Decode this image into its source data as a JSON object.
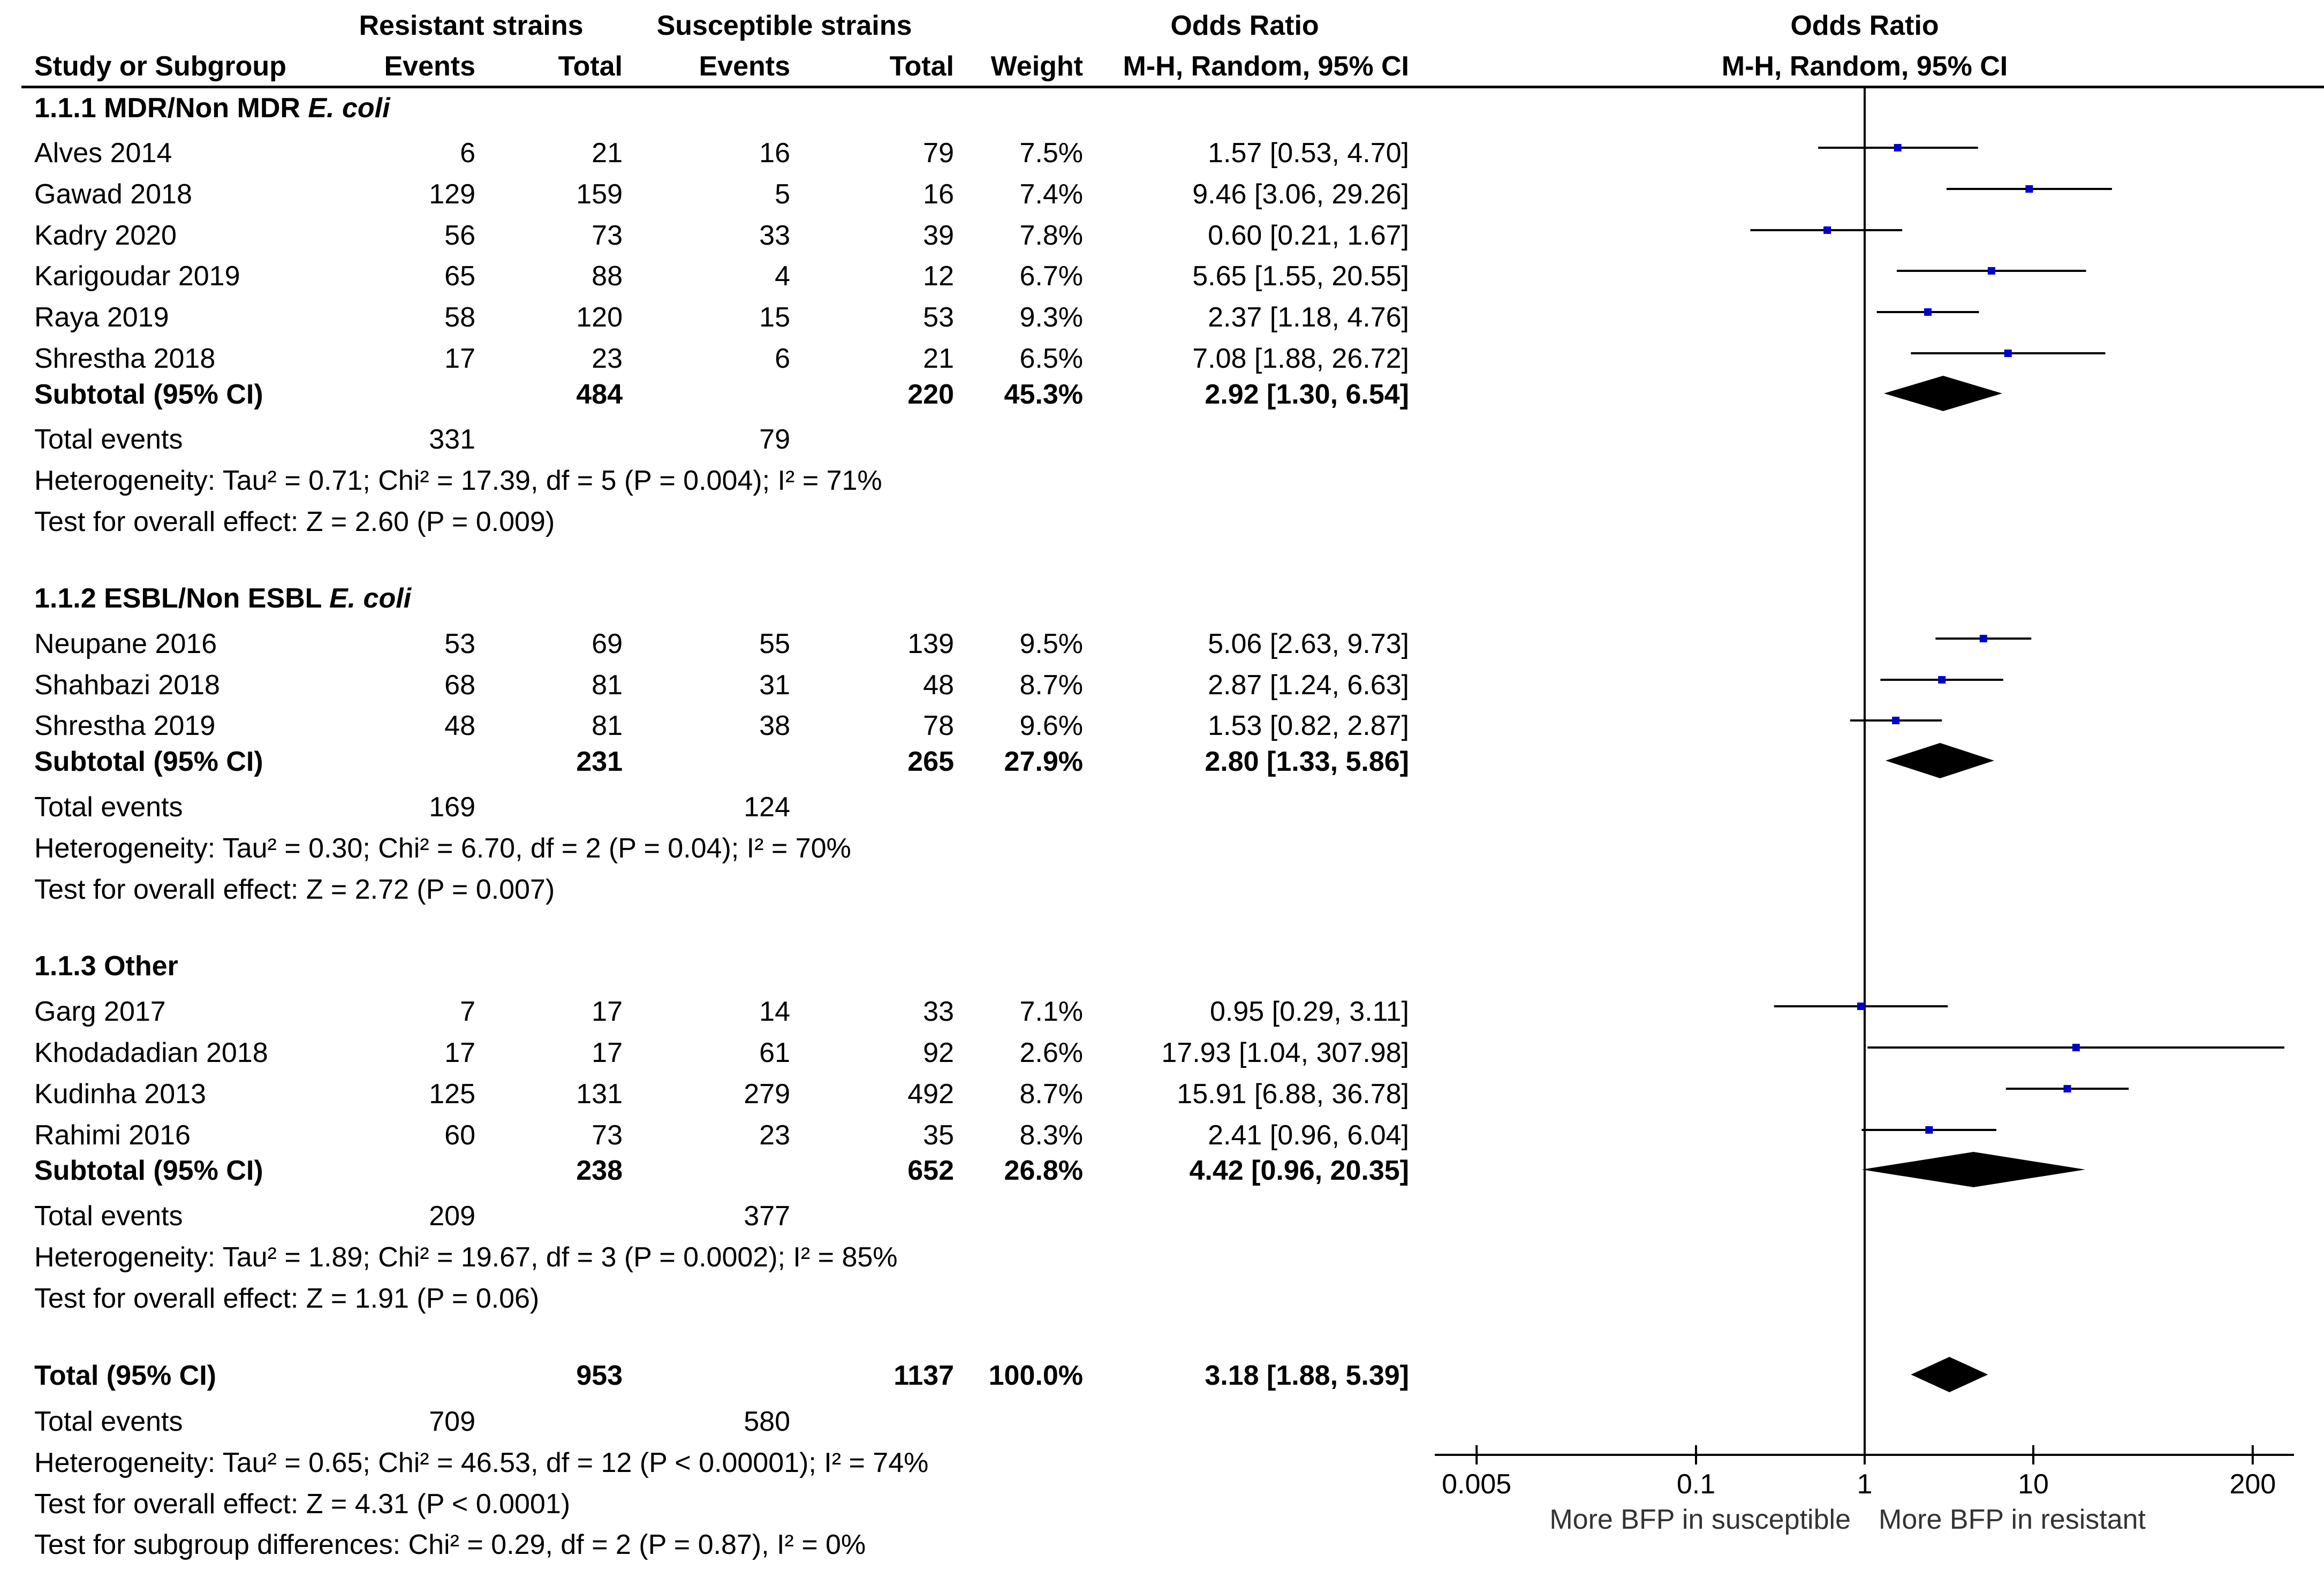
{
  "header": {
    "resistant": "Resistant strains",
    "susceptible": "Susceptible strains",
    "or_title": "Odds Ratio",
    "or_method": "M-H, Random, 95% CI",
    "plot_title": "Odds Ratio",
    "plot_method": "M-H, Random, 95% CI",
    "study": "Study or Subgroup",
    "events": "Events",
    "total": "Total",
    "weight": "Weight"
  },
  "groups": [
    {
      "title": "1.1.1 MDR/Non MDR ",
      "title_italic": "E. coli",
      "studies": [
        {
          "name": "Alves 2014",
          "r_events": "6",
          "r_total": "21",
          "s_events": "16",
          "s_total": "79",
          "weight": "7.5%",
          "ci": "1.57 [0.53, 4.70]"
        },
        {
          "name": "Gawad 2018",
          "r_events": "129",
          "r_total": "159",
          "s_events": "5",
          "s_total": "16",
          "weight": "7.4%",
          "ci": "9.46 [3.06, 29.26]"
        },
        {
          "name": "Kadry 2020",
          "r_events": "56",
          "r_total": "73",
          "s_events": "33",
          "s_total": "39",
          "weight": "7.8%",
          "ci": "0.60 [0.21, 1.67]"
        },
        {
          "name": "Karigoudar 2019",
          "r_events": "65",
          "r_total": "88",
          "s_events": "4",
          "s_total": "12",
          "weight": "6.7%",
          "ci": "5.65 [1.55, 20.55]"
        },
        {
          "name": "Raya 2019",
          "r_events": "58",
          "r_total": "120",
          "s_events": "15",
          "s_total": "53",
          "weight": "9.3%",
          "ci": "2.37 [1.18, 4.76]"
        },
        {
          "name": "Shrestha 2018",
          "r_events": "17",
          "r_total": "23",
          "s_events": "6",
          "s_total": "21",
          "weight": "6.5%",
          "ci": "7.08 [1.88, 26.72]"
        }
      ],
      "subtotal": {
        "label": "Subtotal (95% CI)",
        "r_total": "484",
        "s_total": "220",
        "weight": "45.3%",
        "ci": "2.92 [1.30, 6.54]"
      },
      "events": {
        "label": "Total events",
        "r": "331",
        "s": "79"
      },
      "heterogeneity": "Heterogeneity: Tau² = 0.71; Chi² = 17.39, df = 5 (P = 0.004); I² = 71%",
      "overall": "Test for overall effect: Z = 2.60 (P = 0.009)"
    },
    {
      "title": "1.1.2 ESBL/Non ESBL ",
      "title_italic": "E. coli",
      "studies": [
        {
          "name": "Neupane 2016",
          "r_events": "53",
          "r_total": "69",
          "s_events": "55",
          "s_total": "139",
          "weight": "9.5%",
          "ci": "5.06 [2.63, 9.73]"
        },
        {
          "name": "Shahbazi 2018",
          "r_events": "68",
          "r_total": "81",
          "s_events": "31",
          "s_total": "48",
          "weight": "8.7%",
          "ci": "2.87 [1.24, 6.63]"
        },
        {
          "name": "Shrestha 2019",
          "r_events": "48",
          "r_total": "81",
          "s_events": "38",
          "s_total": "78",
          "weight": "9.6%",
          "ci": "1.53 [0.82, 2.87]"
        }
      ],
      "subtotal": {
        "label": "Subtotal (95% CI)",
        "r_total": "231",
        "s_total": "265",
        "weight": "27.9%",
        "ci": "2.80 [1.33, 5.86]"
      },
      "events": {
        "label": "Total events",
        "r": "169",
        "s": "124"
      },
      "heterogeneity": "Heterogeneity: Tau² = 0.30; Chi² = 6.70, df = 2 (P = 0.04); I² = 70%",
      "overall": "Test for overall effect: Z = 2.72 (P = 0.007)"
    },
    {
      "title": "1.1.3 Other",
      "title_italic": "",
      "studies": [
        {
          "name": "Garg 2017",
          "r_events": "7",
          "r_total": "17",
          "s_events": "14",
          "s_total": "33",
          "weight": "7.1%",
          "ci": "0.95 [0.29, 3.11]"
        },
        {
          "name": "Khodadadian 2018",
          "r_events": "17",
          "r_total": "17",
          "s_events": "61",
          "s_total": "92",
          "weight": "2.6%",
          "ci": "17.93 [1.04, 307.98]"
        },
        {
          "name": "Kudinha 2013",
          "r_events": "125",
          "r_total": "131",
          "s_events": "279",
          "s_total": "492",
          "weight": "8.7%",
          "ci": "15.91 [6.88, 36.78]"
        },
        {
          "name": "Rahimi 2016",
          "r_events": "60",
          "r_total": "73",
          "s_events": "23",
          "s_total": "35",
          "weight": "8.3%",
          "ci": "2.41 [0.96, 6.04]"
        }
      ],
      "subtotal": {
        "label": "Subtotal (95% CI)",
        "r_total": "238",
        "s_total": "652",
        "weight": "26.8%",
        "ci": "4.42 [0.96, 20.35]"
      },
      "events": {
        "label": "Total events",
        "r": "209",
        "s": "377"
      },
      "heterogeneity": "Heterogeneity: Tau² = 1.89; Chi² = 19.67, df = 3 (P = 0.0002); I² = 85%",
      "overall": "Test for overall effect: Z = 1.91 (P = 0.06)"
    }
  ],
  "total": {
    "label": "Total (95% CI)",
    "r_total": "953",
    "s_total": "1137",
    "weight": "100.0%",
    "ci": "3.18 [1.88, 5.39]",
    "events_label": "Total events",
    "r_events": "709",
    "s_events": "580",
    "heterogeneity": "Heterogeneity: Tau² = 0.65; Chi² = 46.53, df = 12 (P < 0.00001); I² = 74%",
    "overall": "Test for overall effect: Z = 4.31 (P < 0.0001)",
    "subgroup": "Test for subgroup differences: Chi² = 0.29, df = 2 (P = 0.87), I² = 0%"
  },
  "axis_footer": {
    "left": "More BFP in susceptible",
    "right": "More BFP in resistant"
  },
  "colors": {
    "marker": "#0000cc",
    "text": "#000000"
  },
  "chart_data": {
    "type": "forest",
    "title": "Odds Ratio",
    "subtitle": "M-H, Random, 95% CI",
    "xscale": "log",
    "xlim": [
      0.005,
      200
    ],
    "xticks": [
      0.005,
      0.1,
      1,
      10,
      200
    ],
    "xtick_labels": [
      "0.005",
      "0.1",
      "1",
      "10",
      "200"
    ],
    "reference_line": 1,
    "studies": [
      {
        "name": "Alves 2014",
        "or": 1.57,
        "lo": 0.53,
        "hi": 4.7
      },
      {
        "name": "Gawad 2018",
        "or": 9.46,
        "lo": 3.06,
        "hi": 29.26
      },
      {
        "name": "Kadry 2020",
        "or": 0.6,
        "lo": 0.21,
        "hi": 1.67
      },
      {
        "name": "Karigoudar 2019",
        "or": 5.65,
        "lo": 1.55,
        "hi": 20.55
      },
      {
        "name": "Raya 2019",
        "or": 2.37,
        "lo": 1.18,
        "hi": 4.76
      },
      {
        "name": "Shrestha 2018",
        "or": 7.08,
        "lo": 1.88,
        "hi": 26.72
      },
      {
        "name": "Neupane 2016",
        "or": 5.06,
        "lo": 2.63,
        "hi": 9.73
      },
      {
        "name": "Shahbazi 2018",
        "or": 2.87,
        "lo": 1.24,
        "hi": 6.63
      },
      {
        "name": "Shrestha 2019",
        "or": 1.53,
        "lo": 0.82,
        "hi": 2.87
      },
      {
        "name": "Garg 2017",
        "or": 0.95,
        "lo": 0.29,
        "hi": 3.11
      },
      {
        "name": "Khodadadian 2018",
        "or": 17.93,
        "lo": 1.04,
        "hi": 307.98
      },
      {
        "name": "Kudinha 2013",
        "or": 15.91,
        "lo": 6.88,
        "hi": 36.78
      },
      {
        "name": "Rahimi 2016",
        "or": 2.41,
        "lo": 0.96,
        "hi": 6.04
      }
    ],
    "pooled": [
      {
        "name": "Subtotal 1.1.1",
        "or": 2.92,
        "lo": 1.3,
        "hi": 6.54
      },
      {
        "name": "Subtotal 1.1.2",
        "or": 2.8,
        "lo": 1.33,
        "hi": 5.86
      },
      {
        "name": "Subtotal 1.1.3",
        "or": 4.42,
        "lo": 0.96,
        "hi": 20.35
      },
      {
        "name": "Total",
        "or": 3.18,
        "lo": 1.88,
        "hi": 5.39
      }
    ]
  }
}
